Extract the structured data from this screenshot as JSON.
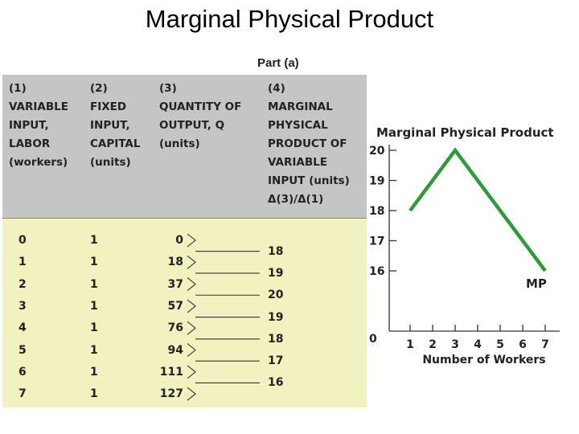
{
  "title": "Marginal Physical Product",
  "part_label": "Part (a)",
  "table": {
    "columns": [
      [
        "(1)",
        "VARIABLE",
        "INPUT,",
        "LABOR",
        "(workers)"
      ],
      [
        "(2)",
        "FIXED",
        "INPUT,",
        "CAPITAL",
        "(units)"
      ],
      [
        "(3)",
        "QUANTITY OF",
        "OUTPUT, Q",
        "(units)"
      ],
      [
        "(4)",
        "MARGINAL",
        "PHYSICAL",
        "PRODUCT OF",
        "VARIABLE",
        "INPUT (units)",
        "Δ(3)/Δ(1)"
      ]
    ],
    "labor": [
      "0",
      "1",
      "2",
      "3",
      "4",
      "5",
      "6",
      "7"
    ],
    "capital": [
      "1",
      "1",
      "1",
      "1",
      "1",
      "1",
      "1",
      "1"
    ],
    "output": [
      "0",
      "18",
      "37",
      "57",
      "76",
      "94",
      "111",
      "127"
    ],
    "marginal": [
      "18",
      "19",
      "20",
      "19",
      "18",
      "17",
      "16"
    ]
  },
  "chart_data": {
    "type": "line",
    "title": "Marginal Physical Product",
    "xlabel": "Number of Workers",
    "ylabel": "",
    "x_ticks": [
      "1",
      "2",
      "3",
      "4",
      "5",
      "6",
      "7"
    ],
    "y_ticks": [
      "16",
      "17",
      "18",
      "19",
      "20"
    ],
    "origin_label": "0",
    "x": [
      1,
      3,
      7
    ],
    "series": [
      {
        "name": "MP",
        "values": [
          18,
          20,
          16
        ],
        "color": "#2f9a3a"
      }
    ],
    "xlim": [
      0,
      7
    ],
    "ylim": [
      16,
      20
    ],
    "grid": false
  }
}
